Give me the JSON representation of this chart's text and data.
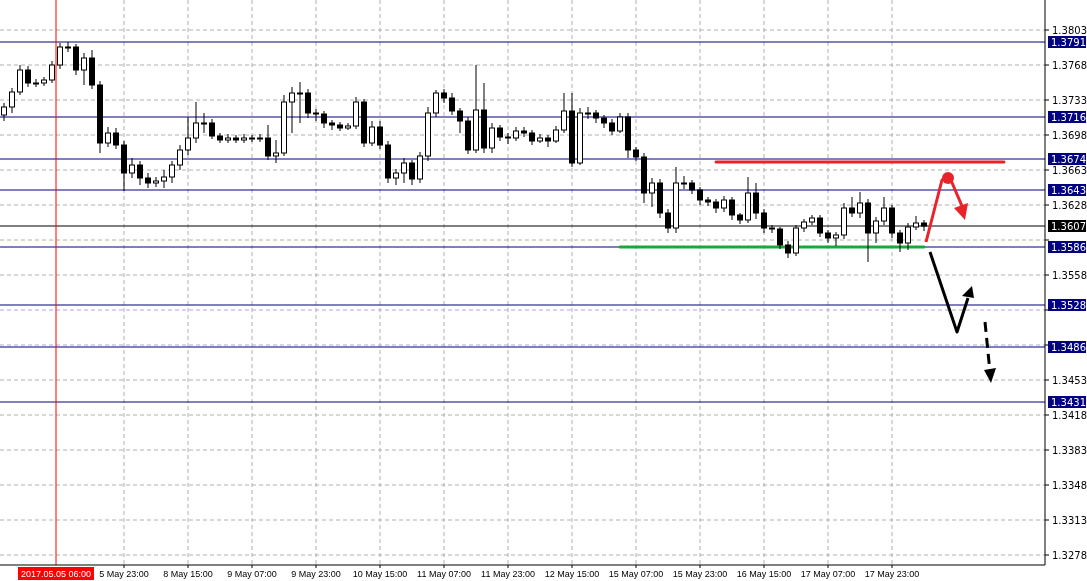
{
  "chart_data": {
    "type": "candlestick",
    "color": "#000000",
    "categories": [
      null,
      null,
      null,
      null,
      null,
      null,
      null,
      null,
      null,
      null,
      null,
      null,
      null,
      null,
      null,
      "5 May 23:00",
      null,
      null,
      null,
      null,
      null,
      null,
      null,
      "8 May 15:00",
      null,
      null,
      null,
      null,
      null,
      null,
      null,
      "9 May 07:00",
      null,
      null,
      null,
      null,
      null,
      null,
      null,
      "9 May 23:00",
      null,
      null,
      null,
      null,
      null,
      null,
      null,
      "10 May 15:00",
      null,
      null,
      null,
      null,
      null,
      null,
      null,
      "11 May 07:00",
      null,
      null,
      null,
      null,
      null,
      null,
      null,
      "11 May 23:00",
      null,
      null,
      null,
      null,
      null,
      null,
      null,
      "12 May 15:00",
      null,
      null,
      null,
      null,
      null,
      null,
      null,
      "15 May 07:00",
      null,
      null,
      null,
      null,
      null,
      null,
      null,
      "15 May 23:00",
      null,
      null,
      null,
      null,
      null,
      null,
      null,
      "16 May 15:00",
      null,
      null,
      null,
      null,
      null,
      null,
      null,
      "17 May 07:00",
      null,
      null,
      null,
      null,
      null,
      null,
      null,
      "17 May 23:00",
      null,
      null,
      null,
      null,
      null,
      null,
      null,
      null,
      null,
      null,
      null,
      null,
      null,
      null,
      null,
      null,
      null,
      null,
      null
    ],
    "ohlc": [
      [
        1.3718,
        1.373,
        1.3712,
        1.3726
      ],
      [
        1.3726,
        1.3745,
        1.372,
        1.3741
      ],
      [
        1.3741,
        1.3768,
        1.3738,
        1.3763
      ],
      [
        1.3763,
        1.3767,
        1.3746,
        1.375
      ],
      [
        1.375,
        1.3754,
        1.3746,
        1.375
      ],
      [
        1.375,
        1.3756,
        1.3747,
        1.3753
      ],
      [
        1.3753,
        1.3772,
        1.375,
        1.3768
      ],
      [
        1.3768,
        1.379,
        1.3764,
        1.3786
      ],
      [
        1.3786,
        1.3791,
        1.3781,
        1.3786
      ],
      [
        1.3786,
        1.3789,
        1.3758,
        1.3763
      ],
      [
        1.3763,
        1.378,
        1.3748,
        1.3775
      ],
      [
        1.3775,
        1.3783,
        1.3744,
        1.3748
      ],
      [
        1.3748,
        1.3752,
        1.368,
        1.369
      ],
      [
        1.369,
        1.3706,
        1.3686,
        1.37
      ],
      [
        1.37,
        1.3705,
        1.3684,
        1.3688
      ],
      [
        1.3688,
        1.3692,
        1.3642,
        1.366
      ],
      [
        1.366,
        1.3675,
        1.3655,
        1.3668
      ],
      [
        1.3668,
        1.3672,
        1.3648,
        1.3655
      ],
      [
        1.3655,
        1.366,
        1.3645,
        1.365
      ],
      [
        1.365,
        1.3656,
        1.3646,
        1.3652
      ],
      [
        1.3652,
        1.3663,
        1.3645,
        1.3656
      ],
      [
        1.3656,
        1.3672,
        1.365,
        1.3668
      ],
      [
        1.3668,
        1.3688,
        1.3663,
        1.3683
      ],
      [
        1.3683,
        1.3716,
        1.3678,
        1.3695
      ],
      [
        1.3695,
        1.3731,
        1.369,
        1.371
      ],
      [
        1.371,
        1.372,
        1.37,
        1.371
      ],
      [
        1.371,
        1.3714,
        1.3694,
        1.3697
      ],
      [
        1.3697,
        1.37,
        1.369,
        1.3693
      ],
      [
        1.3693,
        1.3699,
        1.369,
        1.3695
      ],
      [
        1.3695,
        1.3698,
        1.369,
        1.3693
      ],
      [
        1.3693,
        1.3699,
        1.369,
        1.3695
      ],
      [
        1.3695,
        1.3698,
        1.3691,
        1.3694
      ],
      [
        1.3694,
        1.3699,
        1.3691,
        1.3695
      ],
      [
        1.3695,
        1.3708,
        1.3673,
        1.3677
      ],
      [
        1.3677,
        1.3693,
        1.367,
        1.368
      ],
      [
        1.368,
        1.3738,
        1.3677,
        1.3731
      ],
      [
        1.3731,
        1.3746,
        1.37,
        1.374
      ],
      [
        1.374,
        1.3751,
        1.371,
        1.374
      ],
      [
        1.374,
        1.3744,
        1.3715,
        1.372
      ],
      [
        1.372,
        1.3724,
        1.3712,
        1.3719
      ],
      [
        1.3719,
        1.3722,
        1.3705,
        1.371
      ],
      [
        1.371,
        1.3713,
        1.3703,
        1.3708
      ],
      [
        1.3708,
        1.3711,
        1.3702,
        1.3705
      ],
      [
        1.3705,
        1.371,
        1.3703,
        1.3707
      ],
      [
        1.3707,
        1.3736,
        1.3704,
        1.3731
      ],
      [
        1.3731,
        1.3734,
        1.3686,
        1.369
      ],
      [
        1.369,
        1.3712,
        1.3687,
        1.3706
      ],
      [
        1.3706,
        1.3712,
        1.3684,
        1.3688
      ],
      [
        1.3688,
        1.3692,
        1.365,
        1.3655
      ],
      [
        1.3655,
        1.3664,
        1.3648,
        1.366
      ],
      [
        1.366,
        1.3675,
        1.365,
        1.367
      ],
      [
        1.367,
        1.3673,
        1.3648,
        1.3654
      ],
      [
        1.3654,
        1.3681,
        1.365,
        1.3677
      ],
      [
        1.3677,
        1.3726,
        1.3672,
        1.372
      ],
      [
        1.372,
        1.3743,
        1.3716,
        1.374
      ],
      [
        1.374,
        1.3744,
        1.373,
        1.3735
      ],
      [
        1.3735,
        1.374,
        1.3718,
        1.3722
      ],
      [
        1.3722,
        1.3725,
        1.37,
        1.3712
      ],
      [
        1.3712,
        1.3716,
        1.3679,
        1.3683
      ],
      [
        1.3683,
        1.3768,
        1.368,
        1.3723
      ],
      [
        1.3723,
        1.375,
        1.368,
        1.3685
      ],
      [
        1.3685,
        1.371,
        1.368,
        1.3705
      ],
      [
        1.3705,
        1.3708,
        1.3692,
        1.3696
      ],
      [
        1.3696,
        1.37,
        1.3689,
        1.3695
      ],
      [
        1.3695,
        1.3706,
        1.3692,
        1.3702
      ],
      [
        1.3702,
        1.3706,
        1.3696,
        1.37
      ],
      [
        1.37,
        1.3703,
        1.3688,
        1.3692
      ],
      [
        1.3692,
        1.3699,
        1.369,
        1.3695
      ],
      [
        1.3695,
        1.3698,
        1.3686,
        1.3692
      ],
      [
        1.3692,
        1.3707,
        1.369,
        1.3703
      ],
      [
        1.3703,
        1.374,
        1.37,
        1.3722
      ],
      [
        1.3722,
        1.374,
        1.3666,
        1.367
      ],
      [
        1.367,
        1.3725,
        1.3668,
        1.372
      ],
      [
        1.372,
        1.3726,
        1.3714,
        1.372
      ],
      [
        1.372,
        1.3723,
        1.371,
        1.3715
      ],
      [
        1.3715,
        1.3718,
        1.3705,
        1.371
      ],
      [
        1.371,
        1.3714,
        1.3698,
        1.3702
      ],
      [
        1.3702,
        1.372,
        1.37,
        1.3716
      ],
      [
        1.3716,
        1.372,
        1.3675,
        1.3683
      ],
      [
        1.3683,
        1.3686,
        1.3672,
        1.3676
      ],
      [
        1.3676,
        1.368,
        1.363,
        1.364
      ],
      [
        1.364,
        1.3655,
        1.3626,
        1.365
      ],
      [
        1.365,
        1.3654,
        1.3615,
        1.362
      ],
      [
        1.362,
        1.3624,
        1.36,
        1.3605
      ],
      [
        1.3605,
        1.3666,
        1.36,
        1.365
      ],
      [
        1.365,
        1.3657,
        1.3644,
        1.365
      ],
      [
        1.365,
        1.3653,
        1.3639,
        1.3643
      ],
      [
        1.3643,
        1.3646,
        1.3628,
        1.3633
      ],
      [
        1.3633,
        1.3636,
        1.3627,
        1.3631
      ],
      [
        1.3631,
        1.3634,
        1.362,
        1.3625
      ],
      [
        1.3625,
        1.3637,
        1.3621,
        1.3633
      ],
      [
        1.3633,
        1.3636,
        1.3613,
        1.3618
      ],
      [
        1.3618,
        1.362,
        1.3609,
        1.3613
      ],
      [
        1.3613,
        1.3656,
        1.361,
        1.364
      ],
      [
        1.364,
        1.365,
        1.3614,
        1.362
      ],
      [
        1.362,
        1.3624,
        1.36,
        1.3605
      ],
      [
        1.3605,
        1.3608,
        1.36,
        1.3604
      ],
      [
        1.3604,
        1.3606,
        1.3584,
        1.3588
      ],
      [
        1.3588,
        1.3592,
        1.3575,
        1.358
      ],
      [
        1.358,
        1.3608,
        1.3577,
        1.3605
      ],
      [
        1.3605,
        1.3614,
        1.3601,
        1.3611
      ],
      [
        1.3611,
        1.3618,
        1.3608,
        1.3615
      ],
      [
        1.3615,
        1.3618,
        1.3596,
        1.36
      ],
      [
        1.36,
        1.3603,
        1.359,
        1.3595
      ],
      [
        1.3595,
        1.3601,
        1.3587,
        1.3598
      ],
      [
        1.3598,
        1.363,
        1.3594,
        1.3625
      ],
      [
        1.3625,
        1.3636,
        1.3616,
        1.362
      ],
      [
        1.362,
        1.3641,
        1.3615,
        1.363
      ],
      [
        1.363,
        1.3634,
        1.3571,
        1.36
      ],
      [
        1.36,
        1.3616,
        1.359,
        1.3612
      ],
      [
        1.3612,
        1.3636,
        1.3608,
        1.3625
      ],
      [
        1.3625,
        1.3628,
        1.3595,
        1.36
      ],
      [
        1.36,
        1.3603,
        1.3581,
        1.359
      ],
      [
        1.359,
        1.361,
        1.3583,
        1.3606
      ],
      [
        1.3606,
        1.3617,
        1.3603,
        1.361
      ],
      [
        1.361,
        1.3613,
        1.3602,
        1.3607
      ],
      null,
      null,
      null,
      null,
      null,
      null,
      null,
      null,
      null,
      null,
      null,
      null,
      null,
      null,
      null
    ],
    "series": [
      {
        "type": "line",
        "color": "#1fa53a",
        "values": [
          null,
          null,
          null,
          null,
          null,
          null,
          null,
          null,
          null,
          null,
          null,
          null,
          null,
          null,
          null,
          null,
          null,
          null,
          null,
          null,
          null,
          null,
          null,
          null,
          null,
          null,
          null,
          null,
          null,
          null,
          null,
          null,
          null,
          null,
          null,
          null,
          null,
          null,
          null,
          null,
          null,
          null,
          null,
          null,
          null,
          null,
          null,
          null,
          null,
          null,
          null,
          null,
          null,
          null,
          null,
          null,
          null,
          null,
          null,
          null,
          null,
          null,
          null,
          null,
          null,
          null,
          null,
          null,
          null,
          null,
          null,
          null,
          null,
          null,
          null,
          null,
          null,
          1.3586,
          1.3586,
          1.3586,
          1.3586,
          1.3586,
          1.3586,
          1.3586,
          1.3586,
          1.3586,
          1.3586,
          1.3586,
          1.3586,
          1.3586,
          1.3586,
          1.3586,
          1.3586,
          1.3586,
          1.3586,
          1.3586,
          1.3586,
          1.3586,
          1.3586,
          1.3586,
          1.3586,
          1.3586,
          1.3586,
          1.3586,
          1.3586,
          1.3586,
          1.3586,
          1.3586,
          1.3586,
          1.3586,
          1.3586,
          1.3586,
          1.3586,
          1.3586,
          1.3586,
          1.3586,
          null,
          null,
          null,
          null,
          null,
          null,
          null,
          null,
          null,
          null,
          null,
          null,
          null,
          null,
          null
        ]
      },
      {
        "type": "line",
        "color": "#e8232a",
        "values": [
          null,
          null,
          null,
          null,
          null,
          null,
          null,
          null,
          null,
          null,
          null,
          null,
          null,
          null,
          null,
          null,
          null,
          null,
          null,
          null,
          null,
          null,
          null,
          null,
          null,
          null,
          null,
          null,
          null,
          null,
          null,
          null,
          null,
          null,
          null,
          null,
          null,
          null,
          null,
          null,
          null,
          null,
          null,
          null,
          null,
          null,
          null,
          null,
          null,
          null,
          null,
          null,
          null,
          null,
          null,
          null,
          null,
          null,
          null,
          null,
          null,
          null,
          null,
          null,
          null,
          null,
          null,
          null,
          null,
          null,
          null,
          null,
          null,
          null,
          null,
          null,
          null,
          null,
          null,
          null,
          null,
          null,
          null,
          null,
          null,
          null,
          null,
          null,
          null,
          1.3671,
          1.3671,
          1.3671,
          1.3671,
          1.3671,
          1.3671,
          1.3671,
          1.3671,
          1.3671,
          1.3671,
          1.3671,
          1.3671,
          1.3671,
          1.3671,
          1.3671,
          1.3671,
          1.3671,
          1.3671,
          1.3671,
          1.3671,
          1.3671,
          1.3671,
          1.3671,
          1.3671,
          1.3671,
          1.3671,
          1.3671,
          1.3671,
          1.3671,
          1.3671,
          1.3671,
          1.3671,
          1.3671,
          1.3671,
          1.3671,
          1.3671,
          1.3671,
          null,
          null,
          null,
          null,
          null
        ]
      }
    ],
    "ylim": [
      1.3268,
      1.3833
    ],
    "yticks": [
      1.3803,
      1.3768,
      1.3733,
      1.3698,
      1.3663,
      1.3628,
      {
        "value": 1.3593,
        "label": null
      },
      1.3558,
      {
        "value": 1.3523,
        "label": null
      },
      {
        "value": 1.3488,
        "label": null
      },
      1.3453,
      1.3418,
      1.3383,
      1.3348,
      1.3313,
      1.3278
    ],
    "grid": true,
    "ref_lines": [
      {
        "axis": "y",
        "value": 1.3791,
        "label": "1.3791",
        "color": "#000080"
      },
      {
        "axis": "y",
        "value": 1.3716,
        "label": "1.3716",
        "color": "#000080"
      },
      {
        "axis": "y",
        "value": 1.3674,
        "label": "1.3674",
        "color": "#000080"
      },
      {
        "axis": "y",
        "value": 1.3643,
        "label": "1.3643",
        "color": "#000080"
      },
      {
        "axis": "y",
        "value": 1.3607,
        "label": "1.3607",
        "color": "#000000"
      },
      {
        "axis": "y",
        "value": 1.3586,
        "label": "1.3586",
        "color": "#000080"
      },
      {
        "axis": "y",
        "value": 1.3528,
        "label": "1.3528",
        "color": "#000080"
      },
      {
        "axis": "y",
        "value": 1.3486,
        "label": "1.3486",
        "color": "#000080"
      },
      {
        "axis": "y",
        "value": 1.3431,
        "label": "1.3431",
        "color": "#000080"
      }
    ],
    "annotations": [
      "2017.05.05 06:00"
    ]
  }
}
